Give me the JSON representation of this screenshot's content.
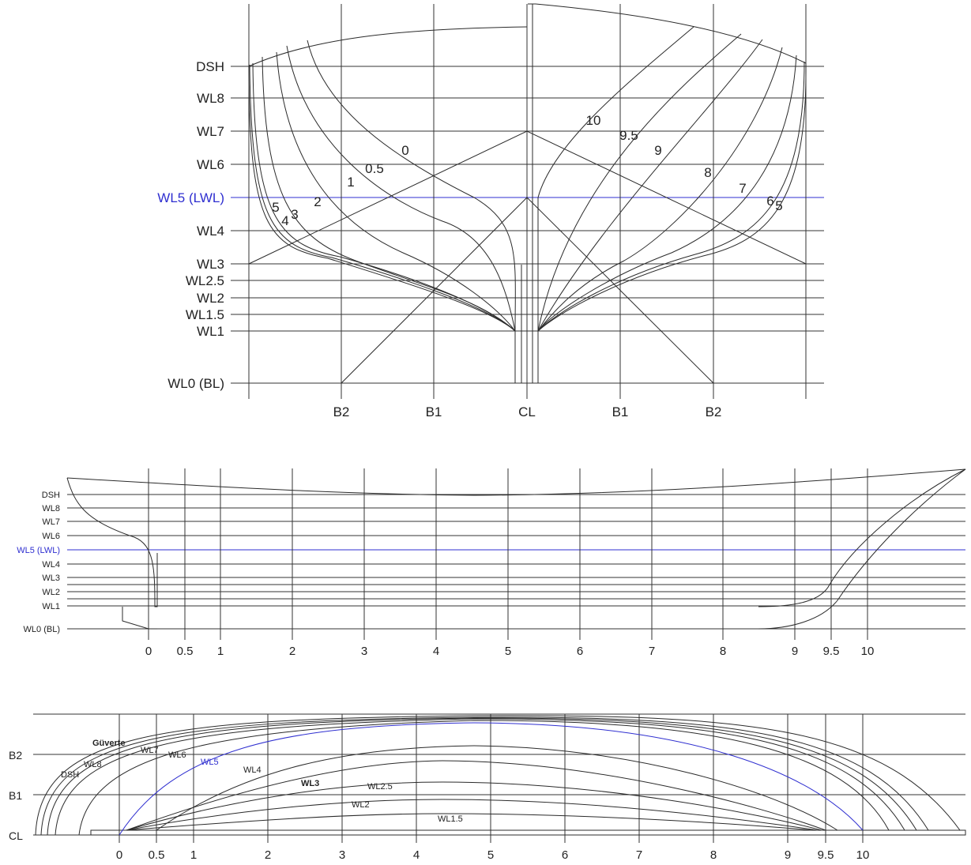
{
  "colors": {
    "line": "#333333",
    "lwl": "#2f2fd0",
    "text": "#222222"
  },
  "body_plan": {
    "waterlines": [
      "DSH",
      "WL8",
      "WL7",
      "WL6",
      "WL5 (LWL)",
      "WL4",
      "WL3",
      "WL2.5",
      "WL2",
      "WL1.5",
      "WL1",
      "WL0 (BL)"
    ],
    "buttocks": [
      "B2",
      "B1",
      "CL",
      "B1",
      "B2"
    ],
    "stations_left": [
      "0",
      "0.5",
      "1",
      "2",
      "3",
      "4",
      "5"
    ],
    "stations_right": [
      "10",
      "9.5",
      "9",
      "8",
      "7",
      "6",
      "5"
    ]
  },
  "profile": {
    "waterlines": [
      "DSH",
      "WL8",
      "WL7",
      "WL6",
      "WL5 (LWL)",
      "WL4",
      "WL3",
      "WL2",
      "WL1",
      "WL0 (BL)"
    ],
    "stations": [
      "0",
      "0.5",
      "1",
      "2",
      "3",
      "4",
      "5",
      "6",
      "7",
      "8",
      "9",
      "9.5",
      "10"
    ]
  },
  "half_breadth": {
    "buttocks": [
      "B2",
      "B1",
      "CL"
    ],
    "stations": [
      "0",
      "0.5",
      "1",
      "2",
      "3",
      "4",
      "5",
      "6",
      "7",
      "8",
      "9",
      "9.5",
      "10"
    ],
    "curve_labels": [
      "Güverte",
      "WL7",
      "WL6",
      "WL8",
      "DSH",
      "WL5",
      "WL4",
      "WL3",
      "WL2.5",
      "WL2",
      "WL1.5"
    ]
  }
}
